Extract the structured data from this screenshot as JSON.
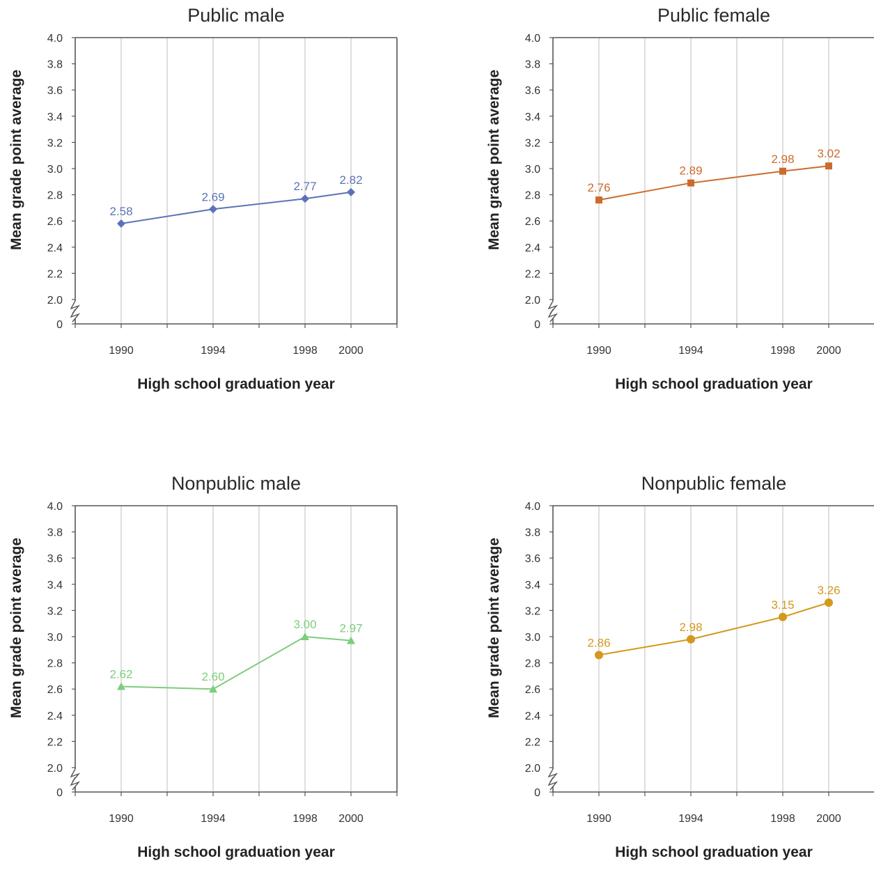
{
  "chart_data": [
    {
      "type": "line",
      "title": "Public male",
      "xlabel": "High school graduation year",
      "ylabel": "Mean grade point average",
      "x": [
        1990,
        1994,
        1998,
        2000
      ],
      "xlim": [
        1988,
        2002
      ],
      "series": [
        {
          "values": [
            2.58,
            2.69,
            2.77,
            2.82
          ],
          "labels": [
            "2.58",
            "2.69",
            "2.77",
            "2.82"
          ],
          "marker": "diamond",
          "color": "#5b72b8"
        }
      ],
      "yticks": [
        "0",
        "2.0",
        "2.2",
        "2.4",
        "2.6",
        "2.8",
        "3.0",
        "3.2",
        "3.4",
        "3.6",
        "3.8",
        "4.0"
      ],
      "ylim": [
        2.0,
        4.0
      ],
      "axis_break": true,
      "grid": "vertical"
    },
    {
      "type": "line",
      "title": "Public female",
      "xlabel": "High school graduation year",
      "ylabel": "Mean grade point average",
      "x": [
        1990,
        1994,
        1998,
        2000
      ],
      "xlim": [
        1988,
        2002
      ],
      "series": [
        {
          "values": [
            2.76,
            2.89,
            2.98,
            3.02
          ],
          "labels": [
            "2.76",
            "2.89",
            "2.98",
            "3.02"
          ],
          "marker": "square",
          "color": "#cc6b2c"
        }
      ],
      "yticks": [
        "0",
        "2.0",
        "2.2",
        "2.4",
        "2.6",
        "2.8",
        "3.0",
        "3.2",
        "3.4",
        "3.6",
        "3.8",
        "4.0"
      ],
      "ylim": [
        2.0,
        4.0
      ],
      "axis_break": true,
      "grid": "vertical"
    },
    {
      "type": "line",
      "title": "Nonpublic male",
      "xlabel": "High school graduation year",
      "ylabel": "Mean grade point average",
      "x": [
        1990,
        1994,
        1998,
        2000
      ],
      "xlim": [
        1988,
        2002
      ],
      "series": [
        {
          "values": [
            2.62,
            2.6,
            3.0,
            2.97
          ],
          "labels": [
            "2.62",
            "2.60",
            "3.00",
            "2.97"
          ],
          "marker": "triangle",
          "color": "#7ccd7c"
        }
      ],
      "yticks": [
        "0",
        "2.0",
        "2.2",
        "2.4",
        "2.6",
        "2.8",
        "3.0",
        "3.2",
        "3.4",
        "3.6",
        "3.8",
        "4.0"
      ],
      "ylim": [
        2.0,
        4.0
      ],
      "axis_break": true,
      "grid": "vertical"
    },
    {
      "type": "line",
      "title": "Nonpublic female",
      "xlabel": "High school graduation year",
      "ylabel": "Mean grade point average",
      "x": [
        1990,
        1994,
        1998,
        2000
      ],
      "xlim": [
        1988,
        2002
      ],
      "series": [
        {
          "values": [
            2.86,
            2.98,
            3.15,
            3.26
          ],
          "labels": [
            "2.86",
            "2.98",
            "3.15",
            "3.26"
          ],
          "marker": "circle",
          "color": "#d4981c"
        }
      ],
      "yticks": [
        "0",
        "2.0",
        "2.2",
        "2.4",
        "2.6",
        "2.8",
        "3.0",
        "3.2",
        "3.4",
        "3.6",
        "3.8",
        "4.0"
      ],
      "ylim": [
        2.0,
        4.0
      ],
      "axis_break": true,
      "grid": "vertical"
    }
  ]
}
